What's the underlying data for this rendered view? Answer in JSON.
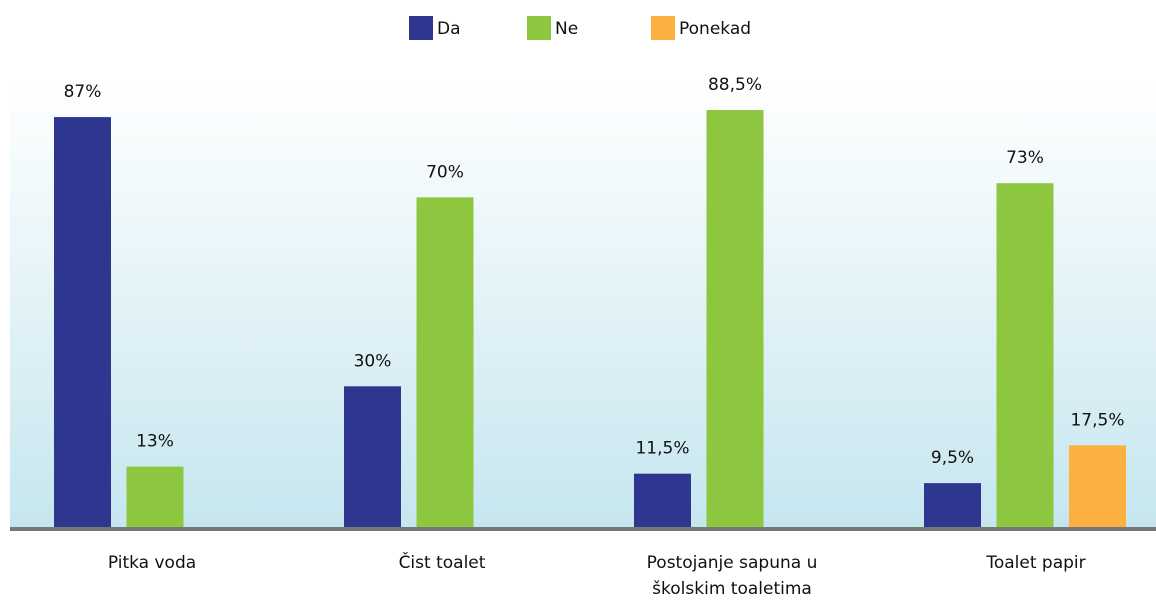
{
  "chart_data": {
    "type": "bar",
    "categories": [
      "Pitka voda",
      "Čist toalet",
      "Postojanje sapuna u školskim toaletima",
      "Toalet papir"
    ],
    "series": [
      {
        "name": "Da",
        "color": "#2e3690",
        "values": [
          87,
          30,
          11.5,
          9.5
        ],
        "value_labels": [
          "87%",
          "30%",
          "11,5%",
          "9,5%"
        ]
      },
      {
        "name": "Ne",
        "color": "#8dc63f",
        "values": [
          13,
          70,
          88.5,
          73
        ],
        "value_labels": [
          "13%",
          "70%",
          "88,5%",
          "73%"
        ]
      },
      {
        "name": "Ponekad",
        "color": "#fbb040",
        "values": [
          null,
          null,
          null,
          17.5
        ],
        "value_labels": [
          null,
          null,
          null,
          "17,5%"
        ]
      }
    ],
    "legend": "top"
  }
}
